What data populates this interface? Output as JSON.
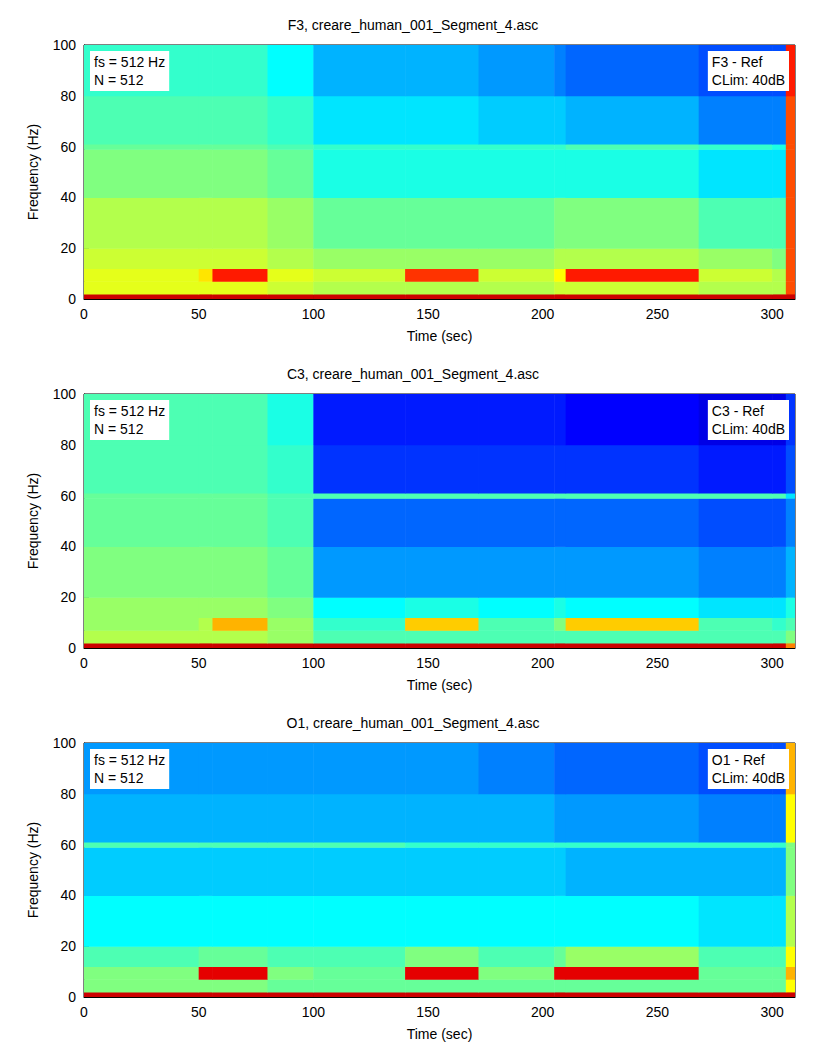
{
  "chart_data": [
    {
      "type": "heatmap",
      "title": "F3, creare_human_001_Segment_4.asc",
      "x_label": "Time (sec)",
      "y_label": "Frequency (Hz)",
      "annotations": {
        "top_left": [
          "fs = 512 Hz",
          "N = 512"
        ],
        "top_right": [
          "F3 - Ref",
          "CLim: 40dB"
        ]
      },
      "xlim": [
        0,
        310
      ],
      "xticks": [
        0,
        50,
        100,
        150,
        200,
        250,
        300
      ],
      "ylim": [
        0,
        100
      ],
      "yticks": [
        0,
        20,
        40,
        60,
        80,
        100
      ],
      "grid": false,
      "color_range": [
        -40,
        0
      ],
      "time_edges": [
        0,
        50,
        56,
        80,
        100,
        140,
        172,
        205,
        210,
        268,
        300,
        306,
        310
      ],
      "frequency_edges": [
        0,
        2,
        7,
        12,
        20,
        40,
        59,
        61,
        80,
        100
      ],
      "cells": [
        [
          -3,
          -3,
          -3,
          -3,
          -3,
          -3,
          -3,
          -3,
          -3,
          -3,
          -3,
          -3
        ],
        [
          -16,
          -16,
          -16,
          -17,
          -18,
          -18,
          -18,
          -17,
          -17,
          -18,
          -18,
          -8
        ],
        [
          -16,
          -14,
          -6,
          -16,
          -17,
          -7,
          -17,
          -15,
          -6,
          -17,
          -18,
          -8
        ],
        [
          -17,
          -17,
          -17,
          -18,
          -19,
          -19,
          -19,
          -18,
          -18,
          -19,
          -20,
          -8
        ],
        [
          -18,
          -18,
          -18,
          -19,
          -21,
          -21,
          -21,
          -20,
          -20,
          -22,
          -22,
          -8
        ],
        [
          -20,
          -20,
          -20,
          -21,
          -24,
          -24,
          -24,
          -24,
          -24,
          -26,
          -26,
          -8
        ],
        [
          -21,
          -21,
          -21,
          -22,
          -23,
          -23,
          -23,
          -23,
          -22,
          -23,
          -24,
          -8
        ],
        [
          -22,
          -22,
          -22,
          -23,
          -26,
          -26,
          -27,
          -27,
          -28,
          -30,
          -30,
          -8
        ],
        [
          -23,
          -23,
          -23,
          -25,
          -28,
          -28,
          -29,
          -30,
          -31,
          -32,
          -32,
          -6
        ]
      ]
    },
    {
      "type": "heatmap",
      "title": "C3, creare_human_001_Segment_4.asc",
      "x_label": "Time (sec)",
      "y_label": "Frequency (Hz)",
      "annotations": {
        "top_left": [
          "fs = 512 Hz",
          "N = 512"
        ],
        "top_right": [
          "C3 - Ref",
          "CLim: 40dB"
        ]
      },
      "xlim": [
        0,
        310
      ],
      "xticks": [
        0,
        50,
        100,
        150,
        200,
        250,
        300
      ],
      "ylim": [
        0,
        100
      ],
      "yticks": [
        0,
        20,
        40,
        60,
        80,
        100
      ],
      "grid": false,
      "color_range": [
        -40,
        0
      ],
      "time_edges": [
        0,
        50,
        56,
        80,
        100,
        140,
        172,
        205,
        210,
        268,
        300,
        306,
        310
      ],
      "frequency_edges": [
        0,
        2,
        7,
        12,
        20,
        40,
        59,
        61,
        80,
        100
      ],
      "cells": [
        [
          -3,
          -3,
          -3,
          -3,
          -3,
          -3,
          -3,
          -3,
          -3,
          -3,
          -3,
          -10
        ],
        [
          -18,
          -18,
          -18,
          -19,
          -22,
          -22,
          -22,
          -22,
          -22,
          -22,
          -22,
          -20
        ],
        [
          -19,
          -18,
          -12,
          -19,
          -23,
          -13,
          -22,
          -20,
          -13,
          -22,
          -23,
          -22
        ],
        [
          -19,
          -19,
          -19,
          -20,
          -25,
          -24,
          -25,
          -24,
          -25,
          -26,
          -26,
          -24
        ],
        [
          -20,
          -20,
          -20,
          -21,
          -29,
          -29,
          -29,
          -29,
          -29,
          -30,
          -30,
          -28
        ],
        [
          -21,
          -21,
          -21,
          -22,
          -31,
          -31,
          -31,
          -31,
          -31,
          -32,
          -32,
          -30
        ],
        [
          -21,
          -21,
          -21,
          -22,
          -22,
          -22,
          -22,
          -22,
          -22,
          -22,
          -22,
          -26
        ],
        [
          -22,
          -22,
          -22,
          -23,
          -33,
          -33,
          -33,
          -33,
          -33,
          -34,
          -34,
          -32
        ],
        [
          -22,
          -22,
          -22,
          -24,
          -34,
          -34,
          -34,
          -34,
          -35,
          -36,
          -36,
          -33
        ]
      ]
    },
    {
      "type": "heatmap",
      "title": "O1, creare_human_001_Segment_4.asc",
      "x_label": "Time (sec)",
      "y_label": "Frequency (Hz)",
      "annotations": {
        "top_left": [
          "fs = 512 Hz",
          "N = 512"
        ],
        "top_right": [
          "O1 - Ref",
          "CLim: 40dB"
        ]
      },
      "xlim": [
        0,
        310
      ],
      "xticks": [
        0,
        50,
        100,
        150,
        200,
        250,
        300
      ],
      "ylim": [
        0,
        100
      ],
      "yticks": [
        0,
        20,
        40,
        60,
        80,
        100
      ],
      "grid": false,
      "color_range": [
        -40,
        0
      ],
      "time_edges": [
        0,
        50,
        56,
        80,
        100,
        140,
        172,
        205,
        210,
        268,
        300,
        306,
        310
      ],
      "frequency_edges": [
        0,
        2,
        7,
        12,
        20,
        40,
        59,
        61,
        80,
        100
      ],
      "cells": [
        [
          -3,
          -3,
          -3,
          -3,
          -3,
          -3,
          -3,
          -3,
          -3,
          -3,
          -3,
          -3
        ],
        [
          -20,
          -20,
          -20,
          -21,
          -21,
          -21,
          -21,
          -21,
          -21,
          -21,
          -21,
          -15
        ],
        [
          -20,
          -4,
          -4,
          -20,
          -21,
          -4,
          -20,
          -4,
          -4,
          -21,
          -21,
          -12
        ],
        [
          -22,
          -21,
          -21,
          -22,
          -22,
          -20,
          -22,
          -21,
          -19,
          -22,
          -22,
          -15
        ],
        [
          -25,
          -25,
          -25,
          -25,
          -25,
          -25,
          -25,
          -25,
          -25,
          -26,
          -26,
          -18
        ],
        [
          -27,
          -27,
          -27,
          -27,
          -27,
          -27,
          -27,
          -27,
          -28,
          -28,
          -28,
          -20
        ],
        [
          -22,
          -22,
          -22,
          -22,
          -22,
          -23,
          -23,
          -23,
          -23,
          -23,
          -23,
          -20
        ],
        [
          -28,
          -28,
          -28,
          -28,
          -28,
          -28,
          -28,
          -29,
          -29,
          -30,
          -30,
          -15
        ],
        [
          -29,
          -29,
          -29,
          -29,
          -29,
          -29,
          -30,
          -31,
          -31,
          -32,
          -32,
          -12
        ]
      ]
    }
  ]
}
